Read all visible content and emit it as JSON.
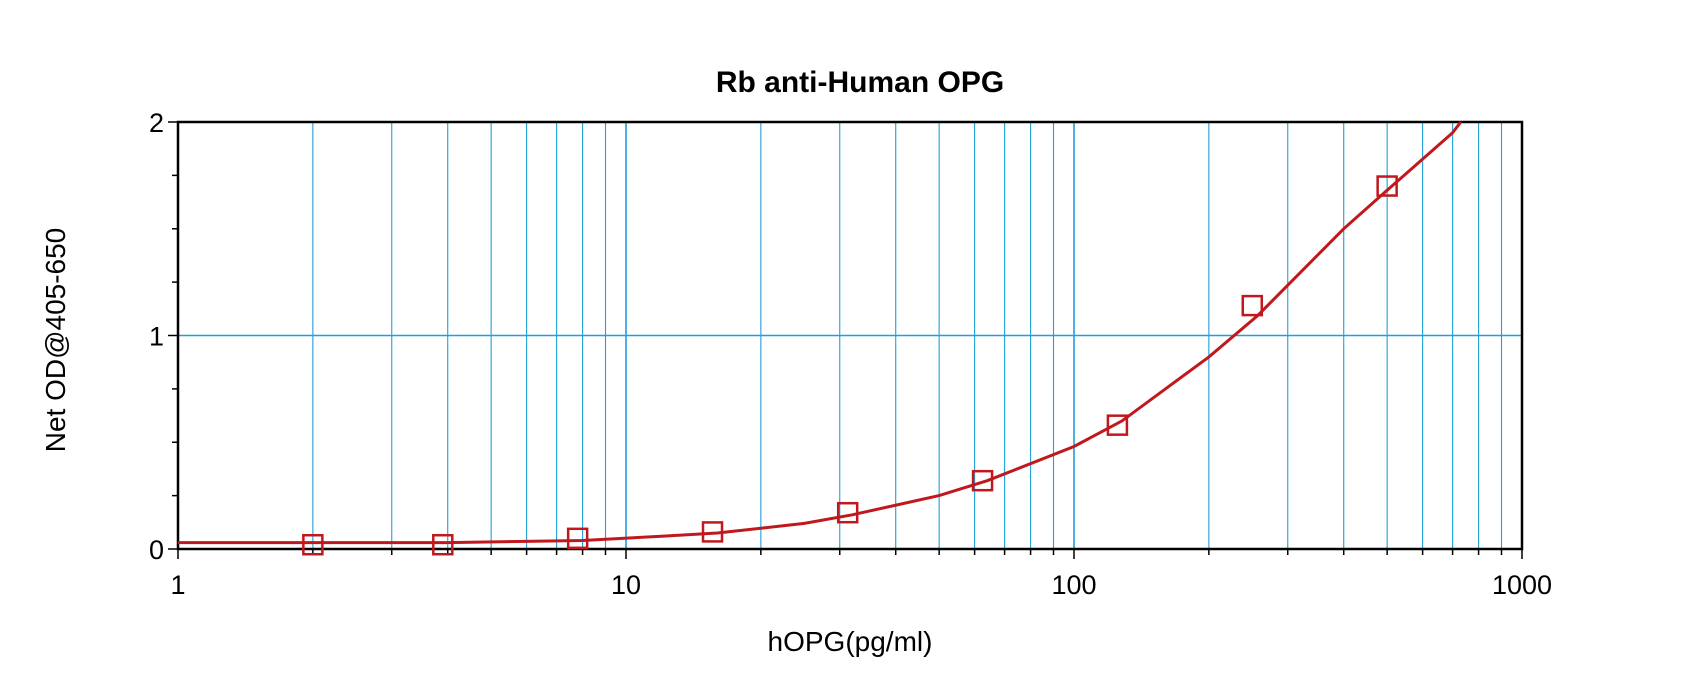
{
  "chart_data": {
    "type": "scatter",
    "title": "Rb anti-Human OPG",
    "xlabel": "hOPG(pg/ml)",
    "ylabel": "Net OD@405-650",
    "x_scale": "log",
    "xlim": [
      1,
      1000
    ],
    "ylim": [
      0,
      2
    ],
    "x_ticks": [
      1,
      10,
      100,
      1000
    ],
    "x_tick_labels": [
      "1",
      "10",
      "100",
      "1000"
    ],
    "y_ticks": [
      0,
      1,
      2
    ],
    "y_tick_labels": [
      "0",
      "1",
      "2"
    ],
    "grid": true,
    "points": {
      "x": [
        2,
        3.9,
        7.8,
        15.6,
        31.25,
        62.5,
        125,
        250,
        500
      ],
      "y": [
        0.02,
        0.02,
        0.05,
        0.08,
        0.17,
        0.32,
        0.58,
        1.14,
        1.7
      ]
    },
    "fit_curve": {
      "x": [
        1,
        2,
        4,
        8,
        12,
        16,
        25,
        32,
        50,
        64,
        100,
        128,
        200,
        256,
        400,
        500,
        700,
        730
      ],
      "y": [
        0.03,
        0.03,
        0.03,
        0.04,
        0.06,
        0.075,
        0.12,
        0.16,
        0.25,
        0.32,
        0.48,
        0.6,
        0.9,
        1.09,
        1.5,
        1.68,
        1.95,
        2.0
      ]
    }
  },
  "colors": {
    "grid": "#1fa0d8",
    "series": "#c0181c",
    "axis": "#000000"
  }
}
